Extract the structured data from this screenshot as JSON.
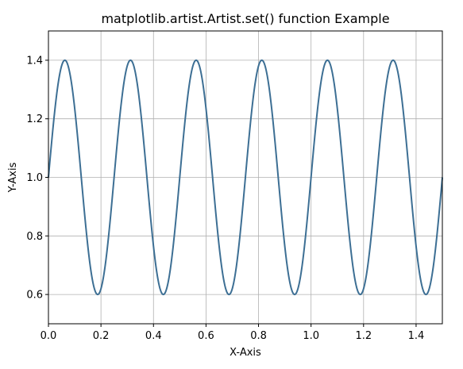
{
  "chart_data": {
    "type": "line",
    "title": "matplotlib.artist.Artist.set() function Example",
    "xlabel": "X-Axis",
    "ylabel": "Y-Axis",
    "xlim": [
      0.0,
      1.5
    ],
    "ylim": [
      0.5,
      1.5
    ],
    "xticks": [
      0.0,
      0.2,
      0.4,
      0.6,
      0.8,
      1.0,
      1.2,
      1.4
    ],
    "yticks": [
      0.6,
      0.8,
      1.0,
      1.2,
      1.4
    ],
    "xtick_labels": [
      "0.0",
      "0.2",
      "0.4",
      "0.6",
      "0.8",
      "1.0",
      "1.2",
      "1.4"
    ],
    "ytick_labels": [
      "0.6",
      "0.8",
      "1.0",
      "1.2",
      "1.4"
    ],
    "grid": true,
    "series": [
      {
        "function": "1 + 0.4 * sin(2 * pi * 4 * x)",
        "x_start": 0.0,
        "x_end": 1.5,
        "sample_step": 0.001,
        "color": "#3d6f94"
      }
    ]
  },
  "colors": {
    "grid": "#b0b0b0",
    "axes": "#000000",
    "line": "#3d6f94"
  }
}
